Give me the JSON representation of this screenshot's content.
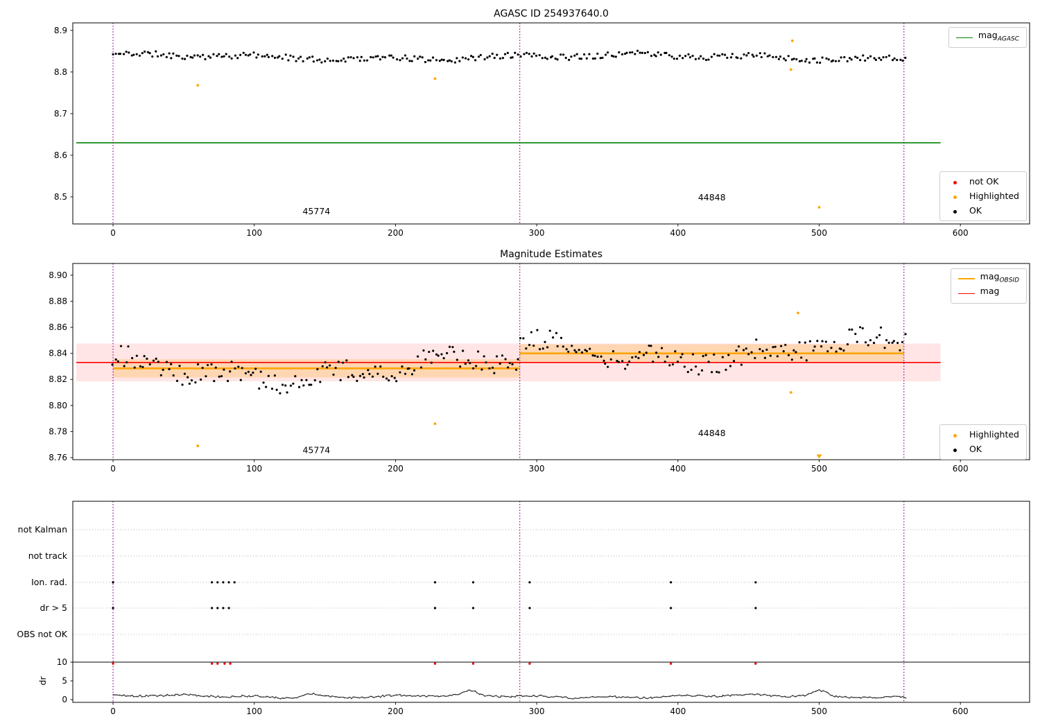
{
  "figure_title": "AGASC ID 254937640.0",
  "colors": {
    "ok": "#000000",
    "not_ok": "#ff0000",
    "highlighted": "#ffa500",
    "agasc_line": "#008000",
    "mag_line": "#ff0000",
    "obsid_line": "#ffa500",
    "obsid_boundary": "#800080",
    "grid": "#b5b5b5",
    "dr_trace": "#2b2b2b"
  },
  "chart_data": [
    {
      "type": "scatter",
      "title": "AGASC ID 254937640.0",
      "xlim": [
        -28.5,
        649
      ],
      "ylim": [
        8.435,
        8.918
      ],
      "xticks": [
        0,
        100,
        200,
        300,
        400,
        500,
        600
      ],
      "yticks": [
        8.5,
        8.6,
        8.7,
        8.8,
        8.9
      ],
      "ytick_decimals": 1,
      "agasc_line": {
        "y": 8.63,
        "x0": -26,
        "x1": 586,
        "color": "#008000"
      },
      "obsid_boundaries": {
        "x": [
          0,
          288,
          560
        ],
        "color": "#800080"
      },
      "ok_gen": {
        "n": 300,
        "x0": 0,
        "x1": 561,
        "base": 8.836,
        "a1": 0.005,
        "f1": 55,
        "ph1": 1.2,
        "a2": 0.0035,
        "f2": 14,
        "ph2": 0.4,
        "noise": 0.014,
        "seed": 11
      },
      "highlighted_points": [
        [
          60,
          8.768
        ],
        [
          228,
          8.784
        ],
        [
          480,
          8.806
        ],
        [
          481,
          8.875
        ],
        [
          500,
          8.475
        ]
      ],
      "not_ok_points": [],
      "annotations": [
        {
          "text": "45774",
          "x": 144,
          "y": 8.458
        },
        {
          "text": "44848",
          "x": 424,
          "y": 8.492
        }
      ],
      "legend_lines": {
        "items": [
          {
            "label_main": "mag",
            "label_sub": "AGASC",
            "color": "#008000"
          }
        ]
      },
      "legend_markers": {
        "items": [
          {
            "label": "not OK",
            "color": "#ff0000"
          },
          {
            "label": "Highlighted",
            "color": "#ffa500"
          },
          {
            "label": "OK",
            "color": "#000000"
          }
        ]
      }
    },
    {
      "type": "scatter",
      "title": "Magnitude Estimates",
      "xlim": [
        -28.5,
        649
      ],
      "ylim": [
        8.7584,
        8.909
      ],
      "xticks": [
        0,
        100,
        200,
        300,
        400,
        500,
        600
      ],
      "yticks": [
        8.76,
        8.78,
        8.8,
        8.82,
        8.84,
        8.86,
        8.88,
        8.9
      ],
      "ytick_decimals": 2,
      "mag_line": {
        "y": 8.833,
        "x0": -26,
        "x1": 586,
        "color": "#ff0000",
        "band": [
          8.8185,
          8.8475
        ],
        "band_color": "rgba(255,0,0,0.10)"
      },
      "obsid_segments": {
        "color": "#ffa500",
        "band_color": "rgba(255,165,0,0.22)",
        "segments": [
          {
            "x0": 0,
            "x1": 288,
            "y": 8.8285,
            "band": [
              8.8215,
              8.8355
            ]
          },
          {
            "x0": 288,
            "x1": 560,
            "y": 8.84,
            "band": [
              8.833,
              8.847
            ]
          }
        ]
      },
      "obsid_boundaries": {
        "x": [
          0,
          288,
          560
        ],
        "color": "#800080"
      },
      "ok_gen": {
        "n": 300,
        "x0": 0,
        "x1": 561,
        "segments": [
          {
            "x0": -5,
            "x1": 288,
            "base": 8.828
          },
          {
            "x0": 288,
            "x1": 562,
            "base": 8.842
          }
        ],
        "a1": 0.008,
        "f1": 45,
        "ph1": 2.1,
        "a2": 0.004,
        "f2": 12,
        "ph2": 1.0,
        "noise": 0.016,
        "seed": 23
      },
      "highlighted_points": [
        [
          60,
          8.769
        ],
        [
          228,
          8.786
        ],
        [
          480,
          8.81
        ],
        [
          485,
          8.871
        ]
      ],
      "highlighted_clipped_low": [
        [
          500,
          8.7608
        ]
      ],
      "annotations": [
        {
          "text": "45774",
          "x": 144,
          "y": 8.7635
        },
        {
          "text": "44848",
          "x": 424,
          "y": 8.7765
        }
      ],
      "legend_lines": {
        "items": [
          {
            "label_main": "mag",
            "label_sub": "OBSID",
            "color": "#ffa500"
          },
          {
            "label_main": "mag",
            "label_sub": "",
            "color": "#ff0000"
          }
        ]
      },
      "legend_markers": {
        "items": [
          {
            "label": "Highlighted",
            "color": "#ffa500"
          },
          {
            "label": "OK",
            "color": "#000000"
          }
        ]
      }
    },
    {
      "type": "flags",
      "xlim": [
        -28.5,
        649
      ],
      "xticks": [
        0,
        100,
        200,
        300,
        400,
        500,
        600
      ],
      "flag_rows": [
        {
          "label": "not Kalman",
          "x": []
        },
        {
          "label": "not track",
          "x": []
        },
        {
          "label": "Ion. rad.",
          "x": [
            0,
            70,
            74,
            78,
            82,
            86,
            228,
            255,
            295,
            395,
            455
          ]
        },
        {
          "label": "dr > 5",
          "x": [
            0,
            70,
            74,
            78,
            82,
            228,
            255,
            295,
            395,
            455
          ]
        },
        {
          "label": "OBS not OK",
          "x": []
        }
      ],
      "dr_axis": {
        "label": "dr",
        "ticks": [
          10,
          5,
          0
        ],
        "hline": 10
      },
      "dr_red_points": {
        "color": "#ff0000",
        "y": 9.6,
        "x": [
          0,
          70,
          74,
          79,
          83,
          228,
          255,
          295,
          395,
          455
        ]
      },
      "dr_gen": {
        "n": 380,
        "x0": 0,
        "x1": 561,
        "base": 0.85,
        "a1": 0.3,
        "f1": 33,
        "ph1": 0.5,
        "a2": 0.2,
        "f2": 8,
        "ph2": 1.7,
        "noise": 0.5,
        "seed": 5,
        "min": 0.05,
        "spikes": [
          [
            140,
            1.0,
            6
          ],
          [
            253,
            1.2,
            4
          ],
          [
            500,
            1.4,
            5
          ]
        ]
      },
      "obsid_boundaries": {
        "x": [
          0,
          288,
          560
        ],
        "color": "#800080"
      }
    }
  ]
}
